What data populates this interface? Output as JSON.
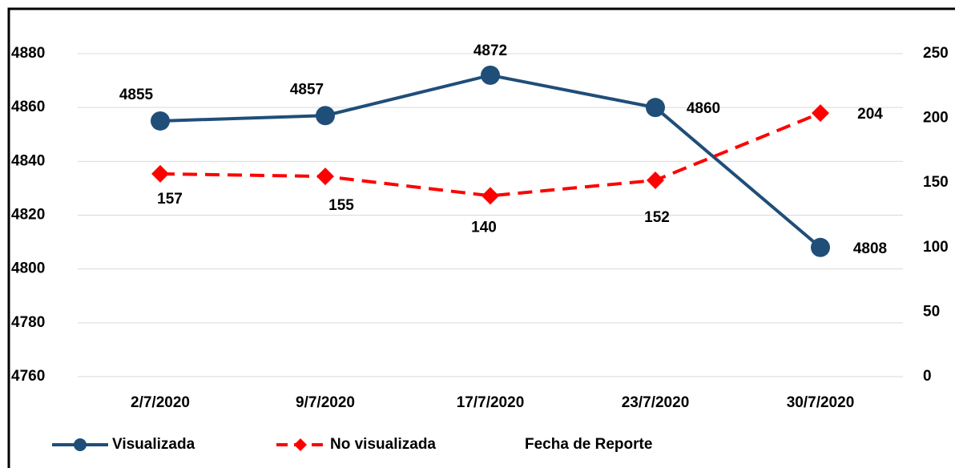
{
  "chart_data": {
    "type": "line",
    "categories": [
      "2/7/2020",
      "9/7/2020",
      "17/7/2020",
      "23/7/2020",
      "30/7/2020"
    ],
    "series": [
      {
        "name": "Visualizada",
        "color": "#1f4e79",
        "values": [
          4855,
          4857,
          4872,
          4860,
          4808
        ]
      },
      {
        "name": "No visualizada",
        "color": "#ff0000",
        "axis": "y2",
        "values": [
          157,
          155,
          140,
          152,
          204
        ]
      }
    ],
    "x_label": "Fecha de Reporte",
    "ylim": [
      4760,
      4880
    ],
    "yticks": [
      4760,
      4780,
      4800,
      4820,
      4840,
      4860,
      4880
    ],
    "y2lim": [
      0,
      250
    ],
    "y2ticks": [
      0,
      50,
      100,
      150,
      200,
      250
    ],
    "grid": true
  }
}
